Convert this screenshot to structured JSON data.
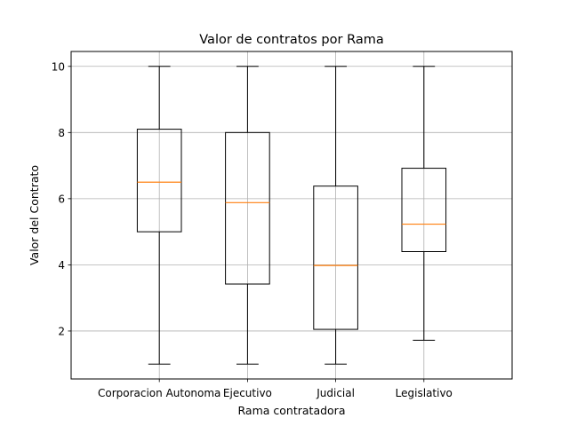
{
  "chart_data": {
    "type": "boxplot",
    "title": "Valor de contratos por Rama",
    "xlabel": "Rama contratadora",
    "ylabel": "Valor del Contrato",
    "ylim": [
      0.55,
      10.45
    ],
    "y_ticks": [
      2,
      4,
      6,
      8,
      10
    ],
    "grid": true,
    "categories": [
      "Corporacion Autonoma",
      "Ejecutivo",
      "Judicial",
      "Legislativo"
    ],
    "boxes": [
      {
        "category": "Corporacion Autonoma",
        "whislo": 1.0,
        "q1": 5.0,
        "med": 6.5,
        "q3": 8.1,
        "whishi": 10.0
      },
      {
        "category": "Ejecutivo",
        "whislo": 1.0,
        "q1": 3.42,
        "med": 5.88,
        "q3": 8.0,
        "whishi": 10.0
      },
      {
        "category": "Judicial",
        "whislo": 1.0,
        "q1": 2.05,
        "med": 3.98,
        "q3": 6.38,
        "whishi": 10.0
      },
      {
        "category": "Legislativo",
        "whislo": 1.72,
        "q1": 4.4,
        "med": 5.23,
        "q3": 6.92,
        "whishi": 10.0
      }
    ],
    "colors": {
      "box": "#000000",
      "median": "#ff7f0e",
      "grid": "#b0b0b0"
    }
  }
}
